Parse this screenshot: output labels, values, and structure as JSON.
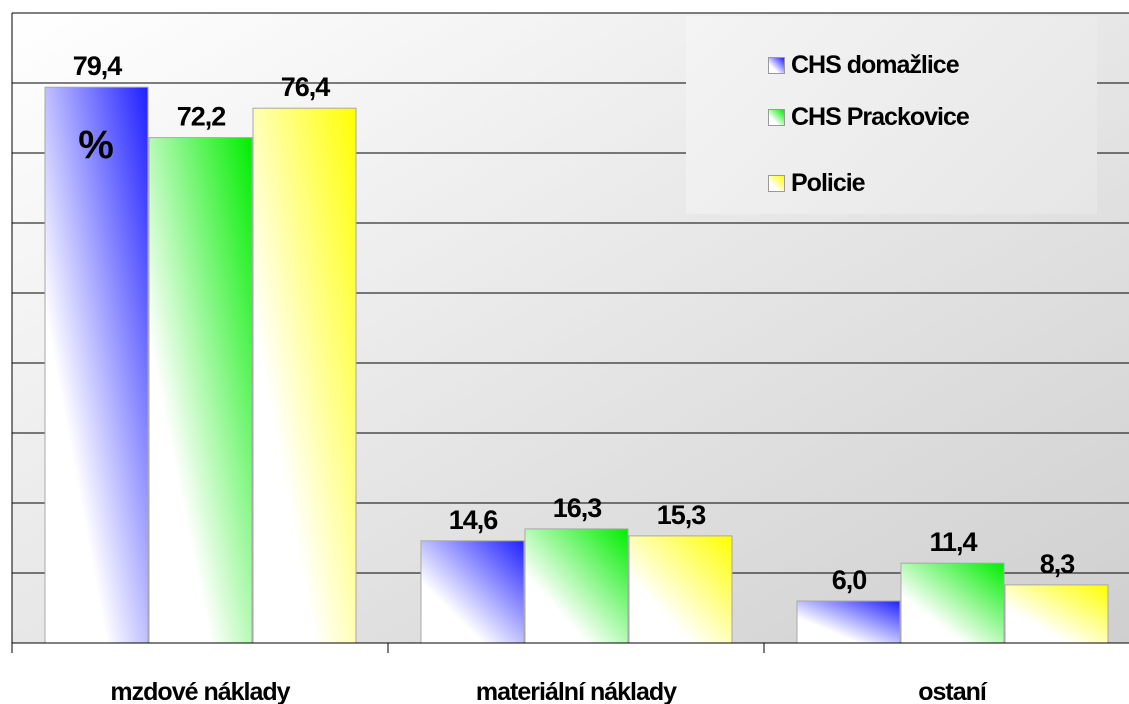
{
  "chart_data": {
    "type": "bar",
    "unit_label": "%",
    "categories": [
      "mzdové náklady",
      "materiální náklady",
      "ostaní"
    ],
    "series": [
      {
        "name": "CHS domažlice",
        "values": [
          79.4,
          14.6,
          6.0
        ],
        "value_labels": [
          "79,4",
          "14,6",
          "6,0"
        ],
        "color": "#2020ff"
      },
      {
        "name": "CHS Prackovice",
        "values": [
          72.2,
          16.3,
          11.4
        ],
        "value_labels": [
          "72,2",
          "16,3",
          "11,4"
        ],
        "color": "#00ee00"
      },
      {
        "name": "Policie",
        "values": [
          76.4,
          15.3,
          8.3
        ],
        "value_labels": [
          "76,4",
          "15,3",
          "8,3"
        ],
        "color": "#ffff00"
      }
    ],
    "ylim": [
      0,
      90
    ],
    "grid": true,
    "legend_position": "top-right",
    "xlabel": "",
    "ylabel": ""
  }
}
